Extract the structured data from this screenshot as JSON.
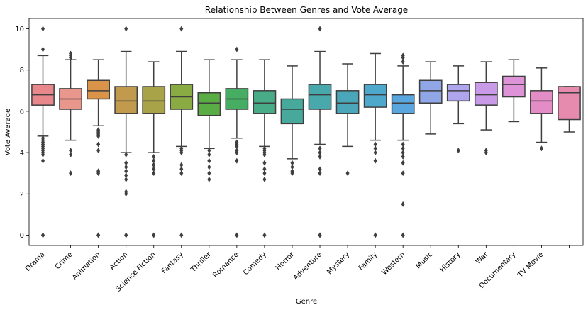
{
  "chart_data": {
    "type": "box",
    "title": "Relationship Between Genres and Vote Average",
    "xlabel": "Genre",
    "ylabel": "Vote Average",
    "ylim": [
      -0.5,
      10.5
    ],
    "yticks": [
      0,
      2,
      4,
      6,
      8,
      10
    ],
    "grid": false,
    "legend": "none",
    "categories": [
      "Drama",
      "Crime",
      "Animation",
      "Action",
      "Science Fiction",
      "Fantasy",
      "Thriller",
      "Romance",
      "Comedy",
      "Horror",
      "Adventure",
      "Mystery",
      "Family",
      "Western",
      "Music",
      "History",
      "War",
      "Documentary",
      "TV Movie",
      ""
    ],
    "boxes": [
      {
        "q1": 6.3,
        "median": 6.8,
        "q3": 7.3,
        "whisker_low": 4.8,
        "whisker_high": 8.7,
        "outliers": [
          0,
          0,
          3.6,
          3.9,
          4.0,
          4.1,
          4.2,
          4.3,
          4.4,
          4.5,
          4.6,
          4.7,
          9.0,
          10.0
        ],
        "color": "#e8878c"
      },
      {
        "q1": 6.1,
        "median": 6.6,
        "q3": 7.1,
        "whisker_low": 4.6,
        "whisker_high": 8.5,
        "outliers": [
          3.0,
          3.9,
          4.1,
          8.6,
          8.7,
          8.8
        ],
        "color": "#e9978c"
      },
      {
        "q1": 6.6,
        "median": 7.0,
        "q3": 7.5,
        "whisker_low": 5.3,
        "whisker_high": 8.5,
        "outliers": [
          0,
          0,
          3.0,
          3.1,
          4.1,
          4.4,
          4.8,
          4.9,
          5.0,
          5.1
        ],
        "color": "#d9944a"
      },
      {
        "q1": 5.9,
        "median": 6.5,
        "q3": 7.2,
        "whisker_low": 4.0,
        "whisker_high": 8.9,
        "outliers": [
          0,
          0,
          2.0,
          2.1,
          2.7,
          2.9,
          3.1,
          3.3,
          3.5,
          3.9,
          10.0
        ],
        "color": "#c19a4e"
      },
      {
        "q1": 5.9,
        "median": 6.5,
        "q3": 7.2,
        "whisker_low": 4.0,
        "whisker_high": 8.4,
        "outliers": [
          0,
          3.0,
          3.2,
          3.4,
          3.6,
          3.8
        ],
        "color": "#a8a249"
      },
      {
        "q1": 6.1,
        "median": 6.7,
        "q3": 7.3,
        "whisker_low": 4.3,
        "whisker_high": 8.9,
        "outliers": [
          0,
          3.0,
          3.2,
          3.4,
          4.0,
          4.1,
          4.2,
          10.0
        ],
        "color": "#8aaa44"
      },
      {
        "q1": 5.8,
        "median": 6.4,
        "q3": 6.9,
        "whisker_low": 4.2,
        "whisker_high": 8.5,
        "outliers": [
          2.7,
          3.0,
          3.3,
          3.6,
          3.9,
          4.1
        ],
        "color": "#5aac44"
      },
      {
        "q1": 6.1,
        "median": 6.6,
        "q3": 7.1,
        "whisker_low": 4.7,
        "whisker_high": 8.5,
        "outliers": [
          0,
          3.6,
          4.0,
          4.1,
          4.3,
          4.4,
          4.5,
          9.0
        ],
        "color": "#46ae62"
      },
      {
        "q1": 5.9,
        "median": 6.4,
        "q3": 7.0,
        "whisker_low": 4.3,
        "whisker_high": 8.5,
        "outliers": [
          0,
          2.7,
          3.0,
          3.2,
          3.5,
          3.9,
          4.0,
          4.1,
          4.2
        ],
        "color": "#48ac88"
      },
      {
        "q1": 5.4,
        "median": 6.1,
        "q3": 6.6,
        "whisker_low": 3.7,
        "whisker_high": 8.2,
        "outliers": [
          3.0,
          3.1,
          3.3,
          3.5
        ],
        "color": "#47a99b"
      },
      {
        "q1": 6.1,
        "median": 6.8,
        "q3": 7.3,
        "whisker_low": 4.4,
        "whisker_high": 8.9,
        "outliers": [
          0,
          0,
          3.0,
          3.2,
          3.8,
          4.0,
          4.2,
          10.0
        ],
        "color": "#48a8ab"
      },
      {
        "q1": 5.9,
        "median": 6.4,
        "q3": 7.0,
        "whisker_low": 4.3,
        "whisker_high": 8.3,
        "outliers": [
          3.0
        ],
        "color": "#4aa7b9"
      },
      {
        "q1": 6.2,
        "median": 6.8,
        "q3": 7.3,
        "whisker_low": 4.6,
        "whisker_high": 8.8,
        "outliers": [
          0,
          0,
          3.6,
          4.0,
          4.2,
          4.4
        ],
        "color": "#4ea8cc"
      },
      {
        "q1": 5.9,
        "median": 6.4,
        "q3": 6.8,
        "whisker_low": 4.6,
        "whisker_high": 8.2,
        "outliers": [
          0,
          1.5,
          3.0,
          3.5,
          3.8,
          4.0,
          4.2,
          4.4,
          8.4,
          8.6,
          8.7
        ],
        "color": "#59a6de"
      },
      {
        "q1": 6.4,
        "median": 7.0,
        "q3": 7.5,
        "whisker_low": 4.9,
        "whisker_high": 8.4,
        "outliers": [],
        "color": "#90a6e6"
      },
      {
        "q1": 6.5,
        "median": 7.0,
        "q3": 7.3,
        "whisker_low": 5.4,
        "whisker_high": 8.2,
        "outliers": [
          4.1
        ],
        "color": "#aea5ec"
      },
      {
        "q1": 6.3,
        "median": 6.8,
        "q3": 7.4,
        "whisker_low": 5.1,
        "whisker_high": 8.4,
        "outliers": [
          4.0,
          4.1
        ],
        "color": "#c99ae8"
      },
      {
        "q1": 6.7,
        "median": 7.3,
        "q3": 7.7,
        "whisker_low": 5.5,
        "whisker_high": 8.5,
        "outliers": [],
        "color": "#de92d8"
      },
      {
        "q1": 5.9,
        "median": 6.5,
        "q3": 7.0,
        "whisker_low": 4.5,
        "whisker_high": 8.1,
        "outliers": [
          4.2
        ],
        "color": "#e38cc6"
      },
      {
        "q1": 5.6,
        "median": 6.9,
        "q3": 7.2,
        "whisker_low": 5.0,
        "whisker_high": 7.2,
        "outliers": [],
        "color": "#e68aae"
      }
    ]
  }
}
